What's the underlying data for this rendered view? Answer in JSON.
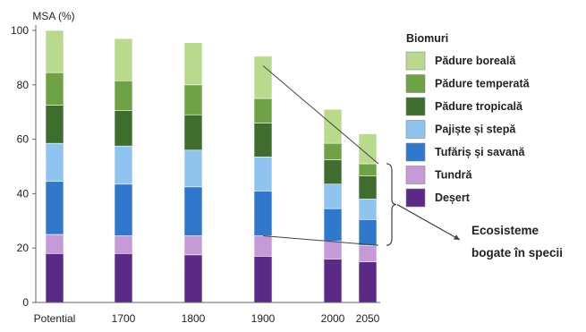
{
  "chart_data": {
    "type": "bar",
    "stacked": true,
    "y_axis_label": "MSA (%)",
    "ylim": [
      0,
      100
    ],
    "y_ticks": [
      0,
      20,
      40,
      60,
      80,
      100
    ],
    "categories": [
      "Potential",
      "1700",
      "1800",
      "1900",
      "2000",
      "2050"
    ],
    "legend_title": "Biomuri",
    "legend_position": "right",
    "series": [
      {
        "name": "Deșert",
        "color": "#5a2a86",
        "values": [
          18,
          18,
          17.5,
          17,
          16,
          15
        ]
      },
      {
        "name": "Tundră",
        "color": "#c69ad6",
        "values": [
          7,
          6.5,
          7,
          7.5,
          6.5,
          6
        ]
      },
      {
        "name": "Tufăriș și savană",
        "color": "#2f78cc",
        "values": [
          19.5,
          19,
          18,
          16.5,
          12,
          9.5
        ]
      },
      {
        "name": "Pajiște și stepă",
        "color": "#8ec4ef",
        "values": [
          14,
          14,
          13.5,
          12.5,
          9,
          7.5
        ]
      },
      {
        "name": "Pădure tropicală",
        "color": "#3e6d2e",
        "values": [
          14,
          13,
          13,
          12.5,
          9,
          8.5
        ]
      },
      {
        "name": "Pădure temperată",
        "color": "#6ea244",
        "values": [
          12,
          11,
          11,
          9,
          6,
          4.5
        ]
      },
      {
        "name": "Pădure boreală",
        "color": "#b9d98c",
        "values": [
          15.5,
          15.5,
          15.5,
          15.5,
          12.5,
          11
        ]
      }
    ],
    "annotation": {
      "lines": [
        "Ecosisteme",
        "bogate în specii"
      ]
    }
  }
}
